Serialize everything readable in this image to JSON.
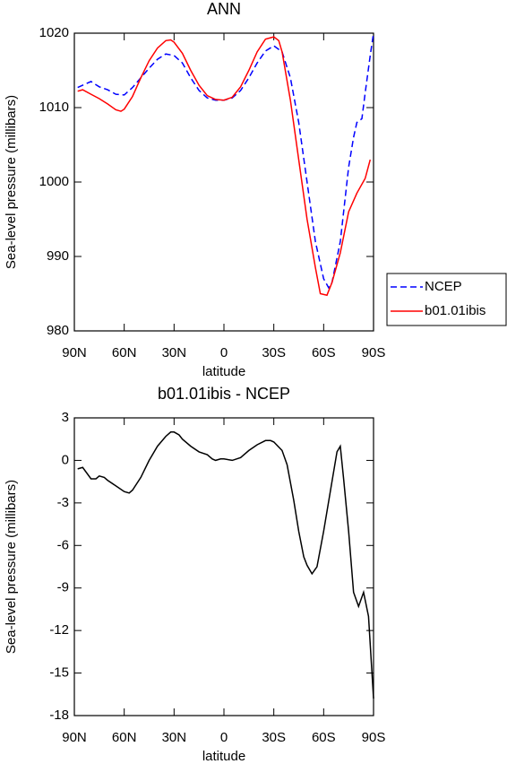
{
  "chart_data": [
    {
      "type": "line",
      "title": "ANN",
      "xlabel": "latitude",
      "ylabel": "Sea-level pressure (millibars)",
      "xlim": [
        90,
        -90
      ],
      "xticks": [
        {
          "value": 90,
          "label": "90N"
        },
        {
          "value": 60,
          "label": "60N"
        },
        {
          "value": 30,
          "label": "30N"
        },
        0,
        {
          "value": -30,
          "label": "30S"
        },
        {
          "value": -60,
          "label": "60S"
        },
        {
          "value": -90,
          "label": "90S"
        }
      ],
      "ylim": [
        980,
        1020
      ],
      "yticks": [
        980,
        990,
        1000,
        1010,
        1020
      ],
      "legend": "right",
      "series": [
        {
          "name": "NCEP",
          "color": "#0000ff",
          "dash": true,
          "x": [
            88,
            80,
            75,
            70,
            65,
            60,
            55,
            50,
            45,
            40,
            35,
            30,
            25,
            20,
            15,
            10,
            5,
            0,
            -5,
            -10,
            -15,
            -20,
            -25,
            -30,
            -35,
            -40,
            -45,
            -50,
            -55,
            -60,
            -63,
            -65,
            -70,
            -75,
            -78,
            -80,
            -83,
            -85,
            -88,
            -90
          ],
          "values": [
            1012.7,
            1013.5,
            1012.8,
            1012.4,
            1011.8,
            1011.7,
            1012.7,
            1014,
            1015.3,
            1016.5,
            1017.2,
            1017,
            1016,
            1014,
            1012.3,
            1011.3,
            1011,
            1011,
            1011.3,
            1012.3,
            1014,
            1016,
            1017.6,
            1018.3,
            1017.5,
            1014,
            1008,
            1000,
            992,
            987,
            985.8,
            986.5,
            992,
            1002,
            1006,
            1008,
            1008.5,
            1012,
            1017,
            1020
          ]
        },
        {
          "name": "b01.01ibis",
          "color": "#ff0000",
          "dash": false,
          "x": [
            88,
            85,
            80,
            75,
            70,
            65,
            62,
            60,
            55,
            50,
            45,
            40,
            35,
            32,
            30,
            25,
            20,
            15,
            10,
            5,
            0,
            -5,
            -10,
            -15,
            -20,
            -25,
            -30,
            -33,
            -35,
            -40,
            -45,
            -50,
            -55,
            -58,
            -62,
            -65,
            -70,
            -75,
            -80,
            -85,
            -88
          ],
          "values": [
            1012.2,
            1012.4,
            1011.8,
            1011.2,
            1010.5,
            1009.7,
            1009.5,
            1009.8,
            1011.5,
            1014,
            1016.3,
            1018,
            1019,
            1019.1,
            1018.8,
            1017.3,
            1015,
            1013,
            1011.6,
            1011.1,
            1011,
            1011.4,
            1012.8,
            1015,
            1017.5,
            1019.2,
            1019.5,
            1019,
            1017.5,
            1011,
            1003,
            995,
            988.5,
            985,
            984.8,
            986.5,
            990.5,
            996,
            998.5,
            1000.5,
            1003
          ]
        }
      ]
    },
    {
      "type": "line",
      "title": "b01.01ibis - NCEP",
      "xlabel": "latitude",
      "ylabel": "Sea-level pressure (millibars)",
      "xlim": [
        90,
        -90
      ],
      "xticks": [
        {
          "value": 90,
          "label": "90N"
        },
        {
          "value": 60,
          "label": "60N"
        },
        {
          "value": 30,
          "label": "30N"
        },
        0,
        {
          "value": -30,
          "label": "30S"
        },
        {
          "value": -60,
          "label": "60S"
        },
        {
          "value": -90,
          "label": "90S"
        }
      ],
      "ylim": [
        -18,
        3
      ],
      "yticks": [
        -18,
        -15,
        -12,
        -9,
        -6,
        -3,
        0,
        3
      ],
      "series": [
        {
          "color": "#000000",
          "dash": false,
          "x": [
            88,
            85,
            80,
            77,
            75,
            72,
            70,
            65,
            60,
            57,
            55,
            50,
            45,
            40,
            35,
            32,
            30,
            27,
            25,
            20,
            15,
            10,
            7,
            5,
            2,
            0,
            -5,
            -10,
            -15,
            -20,
            -25,
            -28,
            -30,
            -35,
            -38,
            -42,
            -45,
            -48,
            -50,
            -53,
            -56,
            -60,
            -65,
            -68,
            -70,
            -72,
            -75,
            -78,
            -81,
            -84,
            -87,
            -90
          ],
          "values": [
            -0.6,
            -0.5,
            -1.3,
            -1.3,
            -1.1,
            -1.2,
            -1.4,
            -1.8,
            -2.2,
            -2.3,
            -2.1,
            -1.2,
            0,
            1,
            1.7,
            2.0,
            2.0,
            1.8,
            1.5,
            1.0,
            0.6,
            0.4,
            0.1,
            0,
            0.1,
            0.1,
            0,
            0.2,
            0.7,
            1.1,
            1.4,
            1.4,
            1.3,
            0.7,
            -0.3,
            -2.8,
            -5,
            -6.8,
            -7.4,
            -8,
            -7.5,
            -5,
            -1.5,
            0.6,
            1.0,
            -1.3,
            -5,
            -9.3,
            -10.3,
            -9.3,
            -11,
            -16.8
          ]
        }
      ]
    }
  ]
}
